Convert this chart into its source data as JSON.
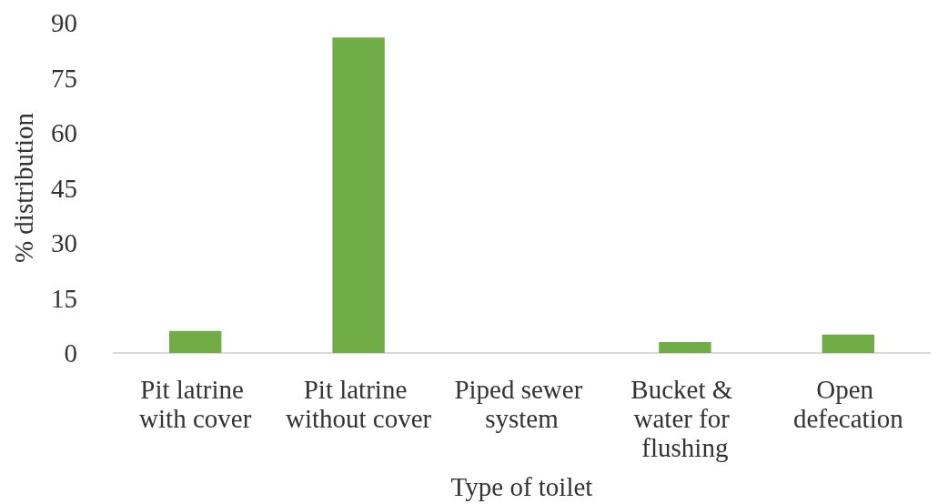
{
  "chart_data": {
    "type": "bar",
    "xlabel": "Type of toilet",
    "ylabel": "% distribution",
    "categories": [
      "Pit latrine with cover",
      "Pit latrine without cover",
      "Piped sewer system",
      "Bucket & water for flushing",
      "Open defecation"
    ],
    "values": [
      6,
      86,
      0,
      3,
      5
    ],
    "color": "#70ad47",
    "ylim": [
      0,
      90
    ],
    "yticks": [
      0,
      15,
      30,
      45,
      60,
      75,
      90
    ],
    "grid": false
  }
}
